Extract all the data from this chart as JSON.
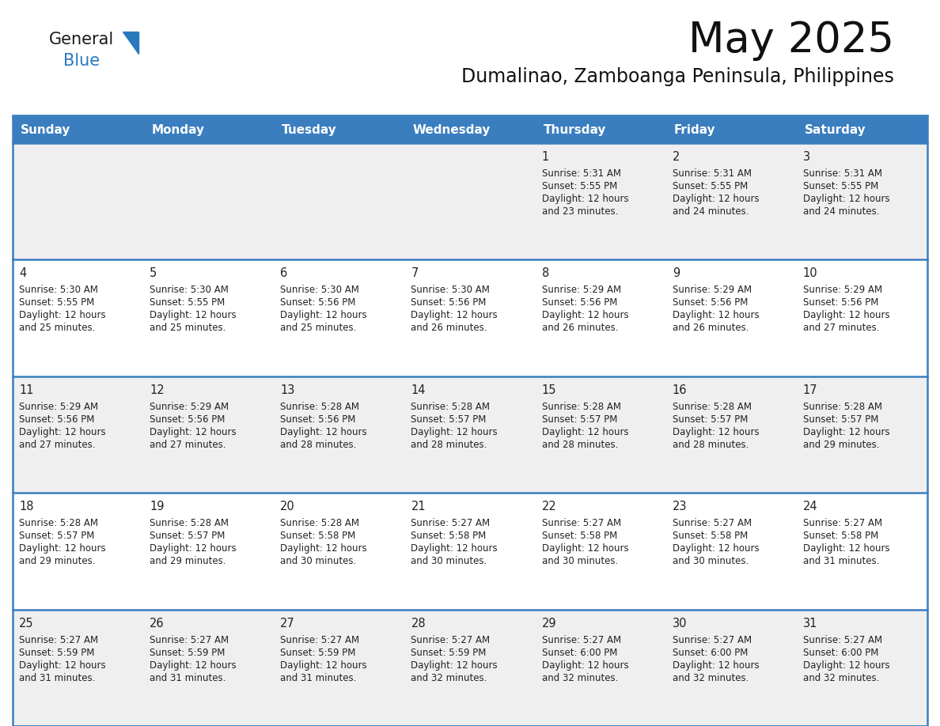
{
  "title": "May 2025",
  "subtitle": "Dumalinao, Zamboanga Peninsula, Philippines",
  "days_of_week": [
    "Sunday",
    "Monday",
    "Tuesday",
    "Wednesday",
    "Thursday",
    "Friday",
    "Saturday"
  ],
  "header_bg": "#3a7ebf",
  "header_text_color": "#ffffff",
  "row_bg_odd": "#efefef",
  "row_bg_even": "#ffffff",
  "separator_color": "#3a7ebf",
  "text_color": "#222222",
  "day_number_color": "#222222",
  "calendar_data": [
    [
      null,
      null,
      null,
      null,
      {
        "day": 1,
        "sunrise": "5:31 AM",
        "sunset": "5:55 PM",
        "daylight": "12 hours",
        "daylight2": "and 23 minutes."
      },
      {
        "day": 2,
        "sunrise": "5:31 AM",
        "sunset": "5:55 PM",
        "daylight": "12 hours",
        "daylight2": "and 24 minutes."
      },
      {
        "day": 3,
        "sunrise": "5:31 AM",
        "sunset": "5:55 PM",
        "daylight": "12 hours",
        "daylight2": "and 24 minutes."
      }
    ],
    [
      {
        "day": 4,
        "sunrise": "5:30 AM",
        "sunset": "5:55 PM",
        "daylight": "12 hours",
        "daylight2": "and 25 minutes."
      },
      {
        "day": 5,
        "sunrise": "5:30 AM",
        "sunset": "5:55 PM",
        "daylight": "12 hours",
        "daylight2": "and 25 minutes."
      },
      {
        "day": 6,
        "sunrise": "5:30 AM",
        "sunset": "5:56 PM",
        "daylight": "12 hours",
        "daylight2": "and 25 minutes."
      },
      {
        "day": 7,
        "sunrise": "5:30 AM",
        "sunset": "5:56 PM",
        "daylight": "12 hours",
        "daylight2": "and 26 minutes."
      },
      {
        "day": 8,
        "sunrise": "5:29 AM",
        "sunset": "5:56 PM",
        "daylight": "12 hours",
        "daylight2": "and 26 minutes."
      },
      {
        "day": 9,
        "sunrise": "5:29 AM",
        "sunset": "5:56 PM",
        "daylight": "12 hours",
        "daylight2": "and 26 minutes."
      },
      {
        "day": 10,
        "sunrise": "5:29 AM",
        "sunset": "5:56 PM",
        "daylight": "12 hours",
        "daylight2": "and 27 minutes."
      }
    ],
    [
      {
        "day": 11,
        "sunrise": "5:29 AM",
        "sunset": "5:56 PM",
        "daylight": "12 hours",
        "daylight2": "and 27 minutes."
      },
      {
        "day": 12,
        "sunrise": "5:29 AM",
        "sunset": "5:56 PM",
        "daylight": "12 hours",
        "daylight2": "and 27 minutes."
      },
      {
        "day": 13,
        "sunrise": "5:28 AM",
        "sunset": "5:56 PM",
        "daylight": "12 hours",
        "daylight2": "and 28 minutes."
      },
      {
        "day": 14,
        "sunrise": "5:28 AM",
        "sunset": "5:57 PM",
        "daylight": "12 hours",
        "daylight2": "and 28 minutes."
      },
      {
        "day": 15,
        "sunrise": "5:28 AM",
        "sunset": "5:57 PM",
        "daylight": "12 hours",
        "daylight2": "and 28 minutes."
      },
      {
        "day": 16,
        "sunrise": "5:28 AM",
        "sunset": "5:57 PM",
        "daylight": "12 hours",
        "daylight2": "and 28 minutes."
      },
      {
        "day": 17,
        "sunrise": "5:28 AM",
        "sunset": "5:57 PM",
        "daylight": "12 hours",
        "daylight2": "and 29 minutes."
      }
    ],
    [
      {
        "day": 18,
        "sunrise": "5:28 AM",
        "sunset": "5:57 PM",
        "daylight": "12 hours",
        "daylight2": "and 29 minutes."
      },
      {
        "day": 19,
        "sunrise": "5:28 AM",
        "sunset": "5:57 PM",
        "daylight": "12 hours",
        "daylight2": "and 29 minutes."
      },
      {
        "day": 20,
        "sunrise": "5:28 AM",
        "sunset": "5:58 PM",
        "daylight": "12 hours",
        "daylight2": "and 30 minutes."
      },
      {
        "day": 21,
        "sunrise": "5:27 AM",
        "sunset": "5:58 PM",
        "daylight": "12 hours",
        "daylight2": "and 30 minutes."
      },
      {
        "day": 22,
        "sunrise": "5:27 AM",
        "sunset": "5:58 PM",
        "daylight": "12 hours",
        "daylight2": "and 30 minutes."
      },
      {
        "day": 23,
        "sunrise": "5:27 AM",
        "sunset": "5:58 PM",
        "daylight": "12 hours",
        "daylight2": "and 30 minutes."
      },
      {
        "day": 24,
        "sunrise": "5:27 AM",
        "sunset": "5:58 PM",
        "daylight": "12 hours",
        "daylight2": "and 31 minutes."
      }
    ],
    [
      {
        "day": 25,
        "sunrise": "5:27 AM",
        "sunset": "5:59 PM",
        "daylight": "12 hours",
        "daylight2": "and 31 minutes."
      },
      {
        "day": 26,
        "sunrise": "5:27 AM",
        "sunset": "5:59 PM",
        "daylight": "12 hours",
        "daylight2": "and 31 minutes."
      },
      {
        "day": 27,
        "sunrise": "5:27 AM",
        "sunset": "5:59 PM",
        "daylight": "12 hours",
        "daylight2": "and 31 minutes."
      },
      {
        "day": 28,
        "sunrise": "5:27 AM",
        "sunset": "5:59 PM",
        "daylight": "12 hours",
        "daylight2": "and 32 minutes."
      },
      {
        "day": 29,
        "sunrise": "5:27 AM",
        "sunset": "6:00 PM",
        "daylight": "12 hours",
        "daylight2": "and 32 minutes."
      },
      {
        "day": 30,
        "sunrise": "5:27 AM",
        "sunset": "6:00 PM",
        "daylight": "12 hours",
        "daylight2": "and 32 minutes."
      },
      {
        "day": 31,
        "sunrise": "5:27 AM",
        "sunset": "6:00 PM",
        "daylight": "12 hours",
        "daylight2": "and 32 minutes."
      }
    ]
  ],
  "logo_color_general": "#1a1a1a",
  "logo_color_blue": "#2878be",
  "logo_triangle_color": "#2878be"
}
